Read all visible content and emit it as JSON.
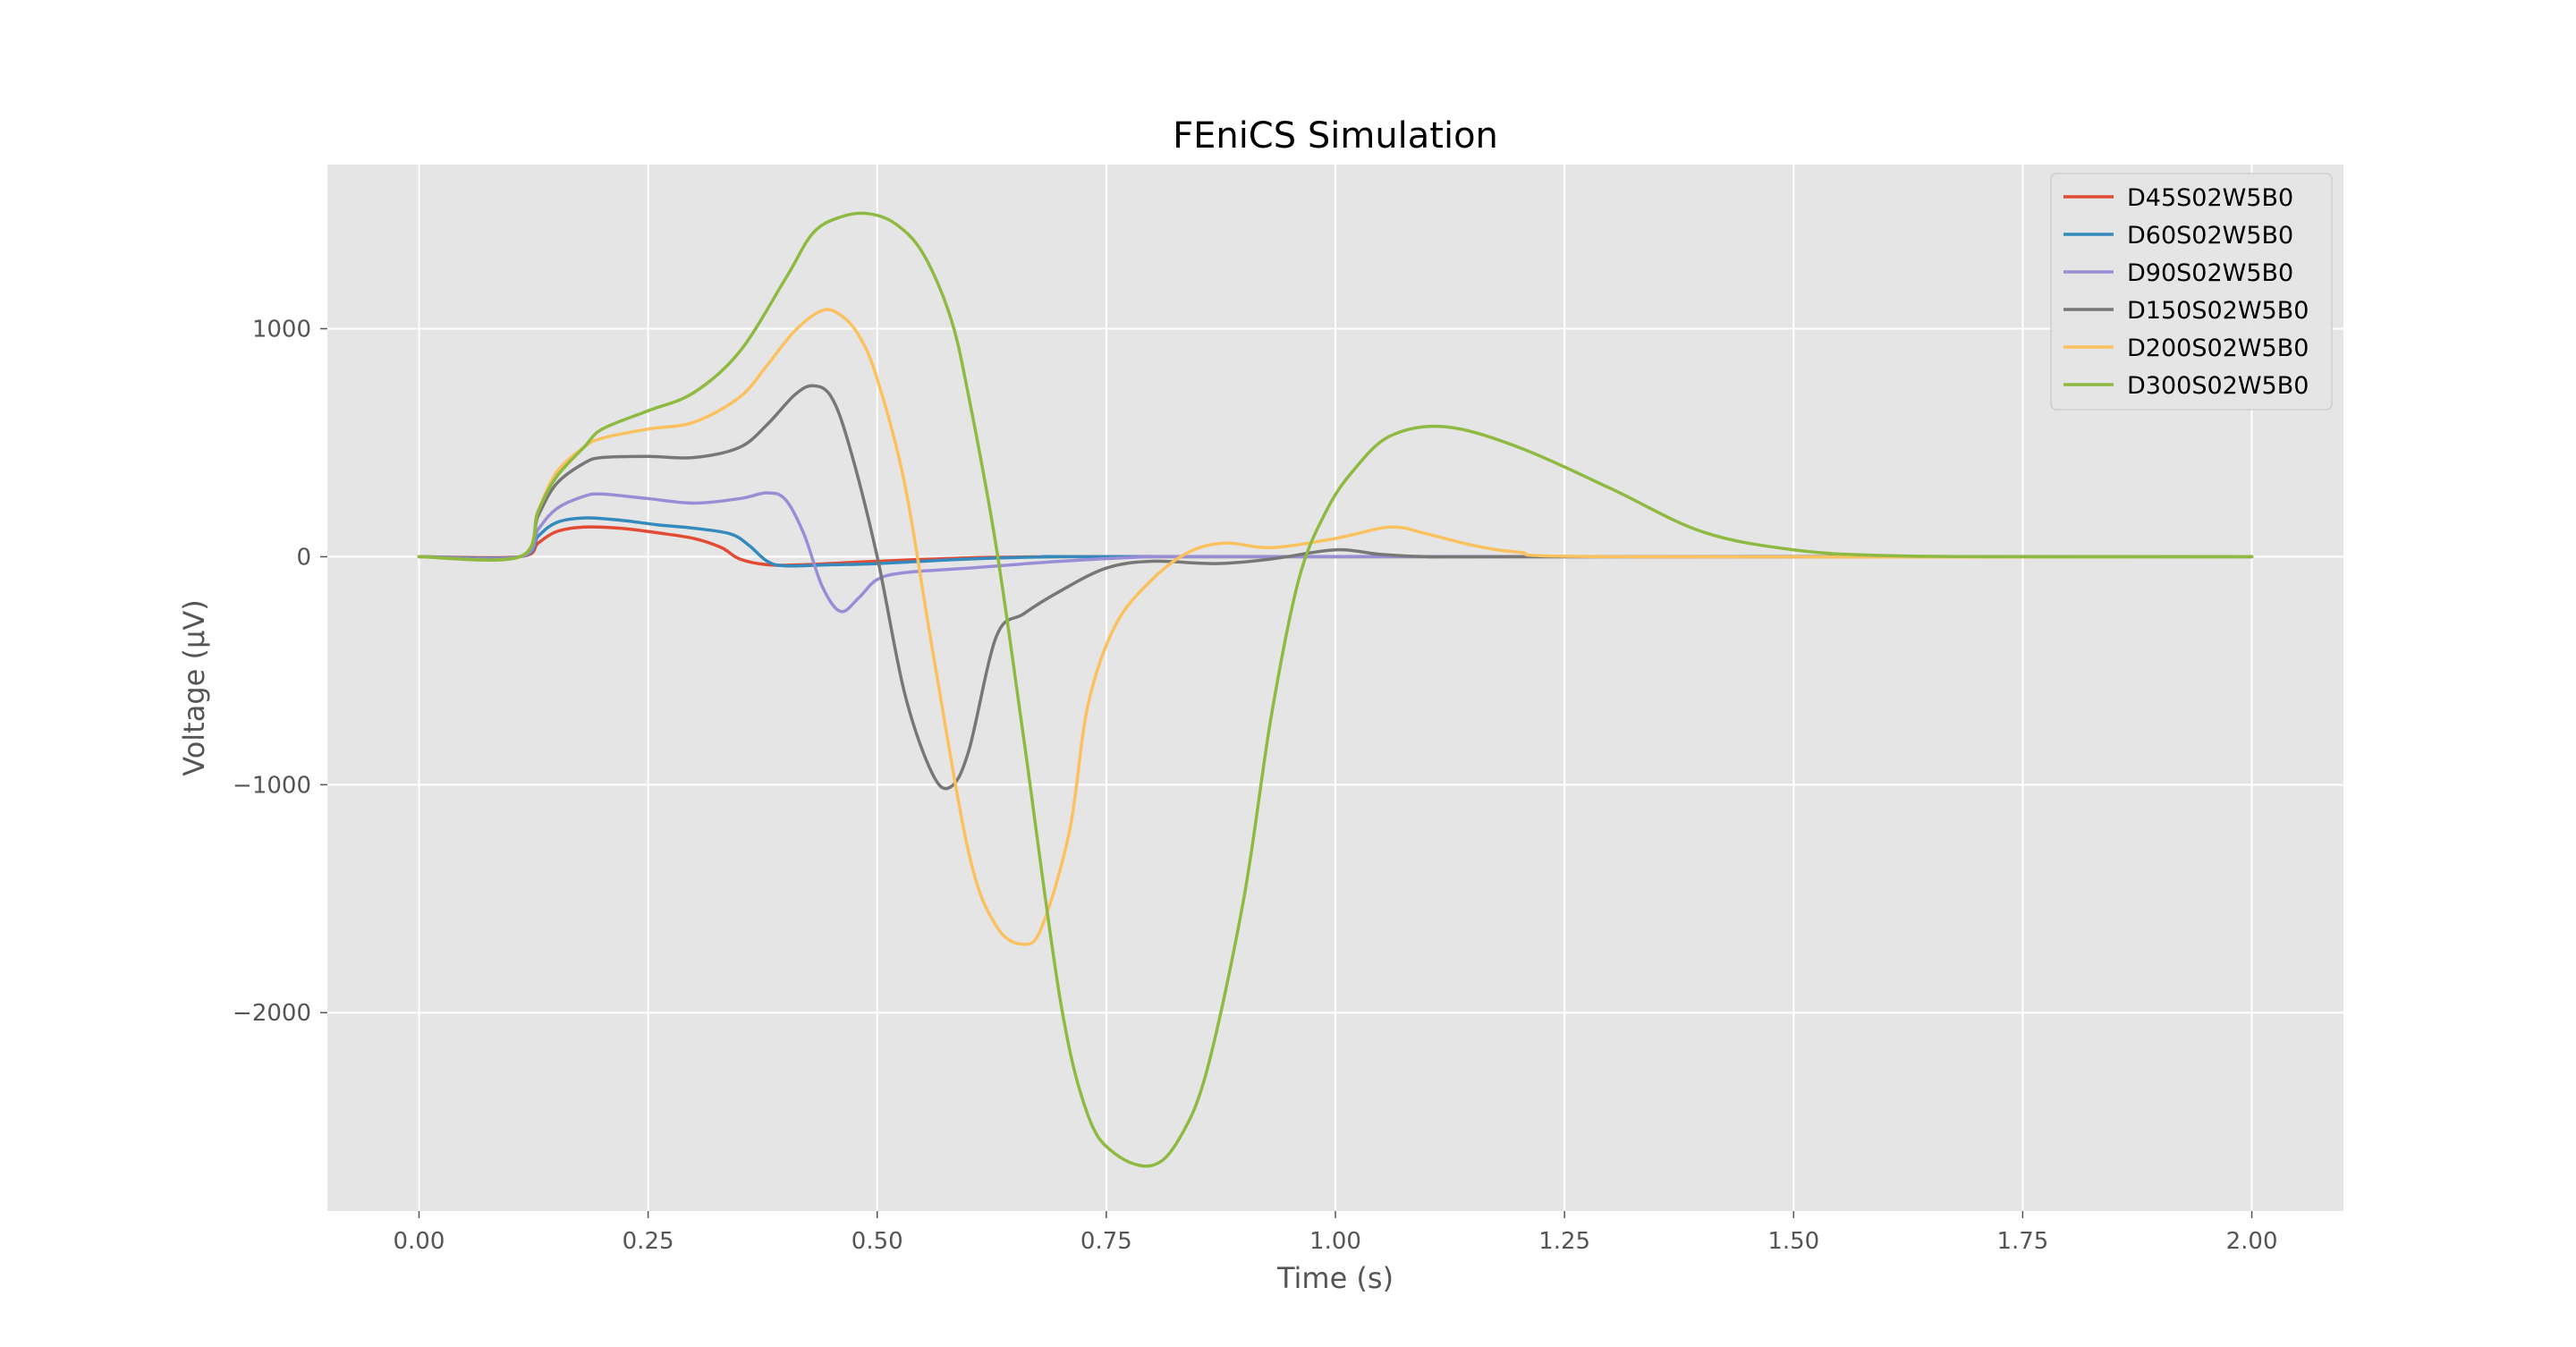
{
  "chart_data": {
    "type": "line",
    "title": "FEniCS Simulation",
    "xlabel": "Time (s)",
    "ylabel": "Voltage (μV)",
    "xlim": [
      -0.1,
      2.1
    ],
    "ylim": [
      -2870,
      1720
    ],
    "xticks": [
      0.0,
      0.25,
      0.5,
      0.75,
      1.0,
      1.25,
      1.5,
      1.75,
      2.0
    ],
    "xtick_labels": [
      "0.00",
      "0.25",
      "0.50",
      "0.75",
      "1.00",
      "1.25",
      "1.50",
      "1.75",
      "2.00"
    ],
    "yticks": [
      1000,
      0,
      -1000,
      -2000
    ],
    "ytick_labels": [
      "1000",
      "0",
      "−1000",
      "−2000"
    ],
    "grid": true,
    "legend_position": "top-right",
    "background_color": "#e5e5e5",
    "series": [
      {
        "name": "D45S02W5B0",
        "color": "#e24a33",
        "x": [
          0,
          0.11,
          0.13,
          0.15,
          0.18,
          0.22,
          0.26,
          0.3,
          0.33,
          0.35,
          0.38,
          0.42,
          0.5,
          0.6,
          0.7,
          0.8,
          2.0
        ],
        "y": [
          0,
          0,
          60,
          110,
          130,
          125,
          105,
          80,
          40,
          -10,
          -35,
          -35,
          -20,
          -5,
          0,
          0,
          0
        ]
      },
      {
        "name": "D60S02W5B0",
        "color": "#348abd",
        "x": [
          0,
          0.11,
          0.13,
          0.15,
          0.18,
          0.22,
          0.26,
          0.3,
          0.34,
          0.36,
          0.38,
          0.4,
          0.45,
          0.5,
          0.6,
          0.7,
          0.8,
          2.0
        ],
        "y": [
          0,
          0,
          90,
          150,
          170,
          160,
          140,
          125,
          100,
          50,
          -20,
          -40,
          -35,
          -30,
          -10,
          0,
          0,
          0
        ]
      },
      {
        "name": "D90S02W5B0",
        "color": "#988ed5",
        "x": [
          0,
          0.11,
          0.13,
          0.15,
          0.18,
          0.2,
          0.25,
          0.3,
          0.35,
          0.38,
          0.4,
          0.42,
          0.44,
          0.46,
          0.48,
          0.5,
          0.53,
          0.6,
          0.7,
          0.8,
          0.9,
          2.0
        ],
        "y": [
          0,
          0,
          120,
          210,
          265,
          275,
          255,
          235,
          255,
          280,
          250,
          100,
          -130,
          -240,
          -180,
          -100,
          -70,
          -50,
          -20,
          0,
          0,
          0
        ]
      },
      {
        "name": "D150S02W5B0",
        "color": "#777777",
        "x": [
          0,
          0.11,
          0.13,
          0.15,
          0.18,
          0.2,
          0.25,
          0.3,
          0.35,
          0.38,
          0.41,
          0.43,
          0.45,
          0.47,
          0.5,
          0.53,
          0.56,
          0.58,
          0.6,
          0.63,
          0.66,
          0.7,
          0.75,
          0.8,
          0.87,
          0.93,
          1.0,
          1.05,
          1.1,
          1.2,
          2.0
        ],
        "y": [
          0,
          0,
          180,
          320,
          410,
          435,
          440,
          435,
          480,
          580,
          710,
          750,
          700,
          480,
          0,
          -600,
          -950,
          -1010,
          -850,
          -350,
          -250,
          -150,
          -50,
          -20,
          -30,
          -10,
          30,
          10,
          0,
          0,
          0
        ]
      },
      {
        "name": "D200S02W5B0",
        "color": "#fbc15e",
        "x": [
          0,
          0.11,
          0.13,
          0.15,
          0.18,
          0.2,
          0.25,
          0.3,
          0.35,
          0.38,
          0.41,
          0.44,
          0.46,
          0.48,
          0.5,
          0.53,
          0.56,
          0.6,
          0.63,
          0.66,
          0.68,
          0.71,
          0.73,
          0.76,
          0.8,
          0.84,
          0.88,
          0.93,
          1.0,
          1.06,
          1.1,
          1.15,
          1.2,
          1.3,
          2.0
        ],
        "y": [
          0,
          0,
          200,
          370,
          480,
          520,
          560,
          590,
          700,
          840,
          990,
          1080,
          1060,
          970,
          780,
          320,
          -400,
          -1300,
          -1620,
          -1700,
          -1620,
          -1200,
          -650,
          -300,
          -100,
          20,
          60,
          40,
          80,
          130,
          100,
          50,
          20,
          0,
          0
        ]
      },
      {
        "name": "D300S02W5B0",
        "color": "#8eba42",
        "x": [
          0,
          0.11,
          0.13,
          0.15,
          0.18,
          0.2,
          0.25,
          0.3,
          0.35,
          0.4,
          0.43,
          0.46,
          0.49,
          0.52,
          0.55,
          0.58,
          0.6,
          0.63,
          0.66,
          0.7,
          0.73,
          0.76,
          0.8,
          0.83,
          0.86,
          0.9,
          0.93,
          0.96,
          0.99,
          1.02,
          1.06,
          1.12,
          1.2,
          1.3,
          1.4,
          1.5,
          1.6,
          1.75,
          2.0
        ],
        "y": [
          0,
          0,
          200,
          350,
          480,
          560,
          640,
          720,
          900,
          1220,
          1420,
          1490,
          1505,
          1460,
          1330,
          1050,
          700,
          40,
          -800,
          -1950,
          -2450,
          -2620,
          -2670,
          -2550,
          -2250,
          -1500,
          -700,
          -100,
          200,
          380,
          530,
          570,
          480,
          300,
          110,
          30,
          5,
          0,
          0
        ]
      }
    ]
  }
}
